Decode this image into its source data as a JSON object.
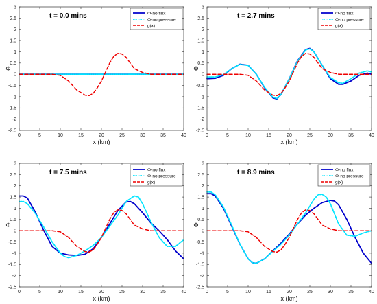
{
  "chart_data": [
    {
      "type": "line",
      "title": "t = 0.0 mins",
      "xlabel": "x (km)",
      "ylabel": "Φ",
      "xlim": [
        0,
        40
      ],
      "ylim": [
        -2.5,
        3
      ],
      "xticks": [
        0,
        5,
        10,
        15,
        20,
        25,
        30,
        35,
        40
      ],
      "yticks": [
        -2.5,
        -2,
        -1.5,
        -1,
        -0.5,
        0,
        0.5,
        1,
        1.5,
        2,
        2.5,
        3
      ],
      "legend_position": "top-right",
      "series": [
        {
          "name": "Φ-no flux",
          "color": "#0000cc",
          "style": "solid",
          "x": [
            0,
            10,
            20,
            30,
            40
          ],
          "y": [
            0,
            0,
            0,
            0,
            0
          ]
        },
        {
          "name": "Φ-no pressure",
          "color": "#00e5ff",
          "style": "dotted",
          "x": [
            0,
            10,
            20,
            30,
            40
          ],
          "y": [
            0,
            0,
            0,
            0,
            0
          ]
        },
        {
          "name": "g(x)",
          "color": "#ee0000",
          "style": "dashed",
          "x": [
            0,
            8,
            10,
            12,
            14,
            16,
            17,
            18,
            19,
            20,
            21,
            22,
            23,
            24,
            25,
            26,
            27,
            28,
            30,
            32,
            35,
            40
          ],
          "y": [
            0,
            0,
            -0.05,
            -0.3,
            -0.7,
            -0.93,
            -0.95,
            -0.85,
            -0.6,
            -0.3,
            0.1,
            0.5,
            0.8,
            0.93,
            0.9,
            0.75,
            0.5,
            0.25,
            0.08,
            0,
            0,
            0
          ]
        }
      ]
    },
    {
      "type": "line",
      "title": "t = 2.7 mins",
      "xlabel": "x (km)",
      "ylabel": "Φ",
      "xlim": [
        0,
        40
      ],
      "ylim": [
        -2.5,
        3
      ],
      "xticks": [
        0,
        5,
        10,
        15,
        20,
        25,
        30,
        35,
        40
      ],
      "yticks": [
        -2.5,
        -2,
        -1.5,
        -1,
        -0.5,
        0,
        0.5,
        1,
        1.5,
        2,
        2.5,
        3
      ],
      "legend_position": "top-right",
      "series": [
        {
          "name": "Φ-no flux",
          "color": "#0000cc",
          "style": "solid",
          "x": [
            0,
            2,
            4,
            6,
            8,
            10,
            12,
            14,
            16,
            17,
            18,
            20,
            22,
            24,
            25,
            26,
            28,
            30,
            32,
            33,
            35,
            37,
            39,
            40
          ],
          "y": [
            -0.2,
            -0.18,
            -0.05,
            0.25,
            0.45,
            0.4,
            0.0,
            -0.6,
            -1.05,
            -1.1,
            -0.9,
            -0.2,
            0.6,
            1.1,
            1.15,
            1.0,
            0.4,
            -0.2,
            -0.45,
            -0.45,
            -0.3,
            -0.05,
            0.05,
            0.0
          ]
        },
        {
          "name": "Φ-no pressure",
          "color": "#00e5ff",
          "style": "dotted",
          "x": [
            0,
            2,
            4,
            6,
            8,
            10,
            12,
            14,
            16,
            17,
            18,
            20,
            22,
            24,
            25,
            26,
            28,
            30,
            32,
            33,
            35,
            37,
            39,
            40
          ],
          "y": [
            -0.12,
            -0.12,
            -0.02,
            0.25,
            0.44,
            0.39,
            0.0,
            -0.58,
            -1.02,
            -1.08,
            -0.9,
            -0.2,
            0.58,
            1.08,
            1.13,
            1.0,
            0.4,
            -0.15,
            -0.38,
            -0.4,
            -0.2,
            0.05,
            0.15,
            0.1
          ]
        },
        {
          "name": "g(x)",
          "color": "#ee0000",
          "style": "dashed",
          "x": [
            0,
            8,
            10,
            12,
            14,
            16,
            17,
            18,
            19,
            20,
            21,
            22,
            23,
            24,
            25,
            26,
            27,
            28,
            30,
            32,
            35,
            40
          ],
          "y": [
            0,
            0,
            -0.05,
            -0.3,
            -0.7,
            -0.93,
            -0.95,
            -0.85,
            -0.6,
            -0.3,
            0.1,
            0.5,
            0.8,
            0.93,
            0.9,
            0.75,
            0.5,
            0.25,
            0.08,
            0,
            0,
            0
          ]
        }
      ]
    },
    {
      "type": "line",
      "title": "t = 7.5 mins",
      "xlabel": "x (km)",
      "ylabel": "Φ",
      "xlim": [
        0,
        40
      ],
      "ylim": [
        -2.5,
        3
      ],
      "xticks": [
        0,
        5,
        10,
        15,
        20,
        25,
        30,
        35,
        40
      ],
      "yticks": [
        -2.5,
        -2,
        -1.5,
        -1,
        -0.5,
        0,
        0.5,
        1,
        1.5,
        2,
        2.5,
        3
      ],
      "legend_position": "top-right",
      "series": [
        {
          "name": "Φ-no flux",
          "color": "#0000cc",
          "style": "solid",
          "x": [
            0,
            1,
            2,
            4,
            6,
            8,
            10,
            12,
            14,
            16,
            18,
            20,
            22,
            24,
            26,
            27,
            28,
            30,
            32,
            34,
            36,
            38,
            40
          ],
          "y": [
            1.55,
            1.55,
            1.45,
            0.8,
            0.0,
            -0.7,
            -1.0,
            -1.08,
            -1.1,
            -1.05,
            -0.8,
            -0.3,
            0.3,
            0.9,
            1.28,
            1.3,
            1.2,
            0.8,
            0.35,
            0.0,
            -0.4,
            -0.9,
            -1.25
          ]
        },
        {
          "name": "Φ-no pressure",
          "color": "#00e5ff",
          "style": "dotted",
          "x": [
            0,
            1,
            2,
            4,
            6,
            8,
            10,
            11,
            12,
            14,
            16,
            18,
            20,
            22,
            24,
            26,
            28,
            29,
            30,
            32,
            34,
            36,
            38,
            40
          ],
          "y": [
            1.3,
            1.3,
            1.2,
            0.75,
            0.15,
            -0.5,
            -1.0,
            -1.15,
            -1.2,
            -1.1,
            -0.9,
            -0.65,
            -0.3,
            0.2,
            0.7,
            1.3,
            1.55,
            1.5,
            1.2,
            0.4,
            -0.3,
            -0.7,
            -0.7,
            -0.4
          ]
        },
        {
          "name": "g(x)",
          "color": "#ee0000",
          "style": "dashed",
          "x": [
            0,
            8,
            10,
            12,
            14,
            16,
            17,
            18,
            19,
            20,
            21,
            22,
            23,
            24,
            25,
            26,
            27,
            28,
            30,
            32,
            35,
            40
          ],
          "y": [
            0,
            0,
            -0.05,
            -0.3,
            -0.7,
            -0.93,
            -0.95,
            -0.85,
            -0.6,
            -0.3,
            0.1,
            0.5,
            0.8,
            0.93,
            0.9,
            0.75,
            0.5,
            0.25,
            0.08,
            0,
            0,
            0
          ]
        }
      ]
    },
    {
      "type": "line",
      "title": "t = 8.9 mins",
      "xlabel": "x (km)",
      "ylabel": "Φ",
      "xlim": [
        0,
        40
      ],
      "ylim": [
        -2.5,
        3
      ],
      "xticks": [
        0,
        5,
        10,
        15,
        20,
        25,
        30,
        35,
        40
      ],
      "yticks": [
        -2.5,
        -2,
        -1.5,
        -1,
        -0.5,
        0,
        0.5,
        1,
        1.5,
        2,
        2.5,
        3
      ],
      "legend_position": "top-right",
      "series": [
        {
          "name": "Φ-no flux",
          "color": "#0000cc",
          "style": "solid",
          "x": [
            0,
            1,
            2,
            4,
            6,
            8,
            10,
            11,
            12,
            14,
            16,
            18,
            20,
            22,
            24,
            26,
            28,
            30,
            31,
            32,
            34,
            36,
            38,
            40
          ],
          "y": [
            1.65,
            1.65,
            1.55,
            1.0,
            0.2,
            -0.6,
            -1.25,
            -1.42,
            -1.45,
            -1.25,
            -0.9,
            -0.55,
            -0.15,
            0.3,
            0.7,
            1.0,
            1.25,
            1.35,
            1.32,
            1.15,
            0.5,
            -0.3,
            -1.0,
            -1.45
          ]
        },
        {
          "name": "Φ-no pressure",
          "color": "#00e5ff",
          "style": "dotted",
          "x": [
            0,
            1,
            2,
            4,
            6,
            8,
            10,
            11,
            12,
            14,
            16,
            18,
            20,
            22,
            24,
            26,
            27,
            28,
            29,
            30,
            32,
            34,
            36,
            38,
            40
          ],
          "y": [
            1.72,
            1.72,
            1.6,
            1.05,
            0.25,
            -0.6,
            -1.25,
            -1.42,
            -1.45,
            -1.25,
            -0.92,
            -0.6,
            -0.2,
            0.3,
            0.8,
            1.4,
            1.6,
            1.62,
            1.5,
            1.2,
            0.3,
            -0.2,
            -0.25,
            -0.1,
            0.0
          ]
        },
        {
          "name": "g(x)",
          "color": "#ee0000",
          "style": "dashed",
          "x": [
            0,
            8,
            10,
            12,
            14,
            16,
            17,
            18,
            19,
            20,
            21,
            22,
            23,
            24,
            25,
            26,
            27,
            28,
            30,
            32,
            35,
            40
          ],
          "y": [
            0,
            0,
            -0.05,
            -0.3,
            -0.7,
            -0.93,
            -0.95,
            -0.85,
            -0.6,
            -0.3,
            0.1,
            0.5,
            0.8,
            0.93,
            0.9,
            0.75,
            0.5,
            0.25,
            0.08,
            0,
            0,
            0
          ]
        }
      ]
    }
  ]
}
